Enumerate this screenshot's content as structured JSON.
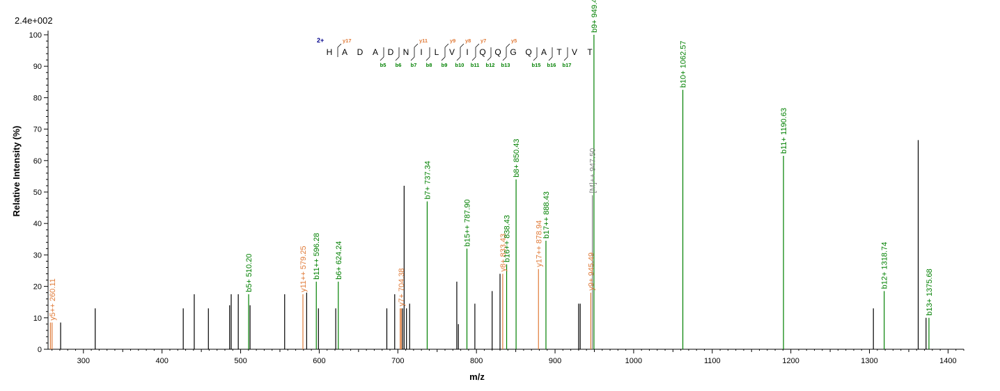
{
  "chart_data": {
    "type": "bar",
    "title": "",
    "max_intensity_label": "2.4e+002",
    "xlabel": "m/z",
    "ylabel": "Relative   Intensity (%)",
    "xlim": [
      255,
      1420
    ],
    "ylim": [
      0,
      100
    ],
    "x_ticks": [
      300,
      400,
      500,
      600,
      700,
      800,
      900,
      1000,
      1100,
      1200,
      1300,
      1400
    ],
    "y_ticks": [
      0,
      10,
      20,
      30,
      40,
      50,
      60,
      70,
      80,
      90,
      100
    ],
    "colors": {
      "b_ion": "#008000",
      "y_ion": "#e07b39",
      "unmatched": "#000000",
      "precursor": "#808080"
    },
    "peaks": [
      {
        "mz": 258.0,
        "i": 8.5,
        "type": "y"
      },
      {
        "mz": 260.11,
        "i": 8.5,
        "type": "y",
        "label": "y5++ 260.11"
      },
      {
        "mz": 271.0,
        "i": 8.5,
        "type": "u"
      },
      {
        "mz": 315.0,
        "i": 13.0,
        "type": "u"
      },
      {
        "mz": 427.0,
        "i": 13.0,
        "type": "u"
      },
      {
        "mz": 441.0,
        "i": 17.5,
        "type": "u"
      },
      {
        "mz": 459.0,
        "i": 13.0,
        "type": "u"
      },
      {
        "mz": 486.0,
        "i": 14.0,
        "type": "u"
      },
      {
        "mz": 488.0,
        "i": 17.5,
        "type": "u"
      },
      {
        "mz": 497.0,
        "i": 17.5,
        "type": "u"
      },
      {
        "mz": 510.2,
        "i": 17.5,
        "type": "b",
        "label": "b5+ 510.20"
      },
      {
        "mz": 512.0,
        "i": 14.0,
        "type": "u"
      },
      {
        "mz": 556.0,
        "i": 17.5,
        "type": "u"
      },
      {
        "mz": 579.25,
        "i": 17.5,
        "type": "y",
        "label": "y11++ 579.25"
      },
      {
        "mz": 584.0,
        "i": 18.0,
        "type": "u"
      },
      {
        "mz": 596.28,
        "i": 21.5,
        "type": "b",
        "label": "b11++ 596.28"
      },
      {
        "mz": 599.0,
        "i": 13.0,
        "type": "u"
      },
      {
        "mz": 621.0,
        "i": 13.0,
        "type": "u"
      },
      {
        "mz": 624.24,
        "i": 21.5,
        "type": "b",
        "label": "b6+ 624.24"
      },
      {
        "mz": 686.0,
        "i": 13.0,
        "type": "u"
      },
      {
        "mz": 696.0,
        "i": 17.5,
        "type": "u"
      },
      {
        "mz": 703.0,
        "i": 13.0,
        "type": "y"
      },
      {
        "mz": 704.38,
        "i": 13.0,
        "type": "y",
        "label": "y7+ 704.38"
      },
      {
        "mz": 706.0,
        "i": 13.0,
        "type": "u"
      },
      {
        "mz": 708.0,
        "i": 52.0,
        "type": "u"
      },
      {
        "mz": 711.0,
        "i": 13.0,
        "type": "u"
      },
      {
        "mz": 715.0,
        "i": 14.5,
        "type": "u"
      },
      {
        "mz": 737.34,
        "i": 47.0,
        "type": "b",
        "label": "b7+ 737.34"
      },
      {
        "mz": 775.0,
        "i": 21.5,
        "type": "u"
      },
      {
        "mz": 777.0,
        "i": 8.0,
        "type": "u"
      },
      {
        "mz": 787.9,
        "i": 32.0,
        "type": "b",
        "label": "b15++ 787.90"
      },
      {
        "mz": 798.0,
        "i": 14.5,
        "type": "u"
      },
      {
        "mz": 820.0,
        "i": 18.5,
        "type": "u"
      },
      {
        "mz": 830.0,
        "i": 24.0,
        "type": "u"
      },
      {
        "mz": 833.43,
        "i": 24.0,
        "type": "y",
        "label": "y8+ 833.43"
      },
      {
        "mz": 838.43,
        "i": 27.0,
        "type": "b",
        "label": "b16++ 838.43"
      },
      {
        "mz": 850.43,
        "i": 54.0,
        "type": "b",
        "label": "b8+ 850.43"
      },
      {
        "mz": 878.94,
        "i": 25.5,
        "type": "y",
        "label": "y17++ 878.94"
      },
      {
        "mz": 888.43,
        "i": 34.5,
        "type": "b",
        "label": "b17++ 888.43"
      },
      {
        "mz": 930.0,
        "i": 14.5,
        "type": "u"
      },
      {
        "mz": 932.0,
        "i": 14.5,
        "type": "u"
      },
      {
        "mz": 945.49,
        "i": 18.0,
        "type": "y",
        "label": "y9+ 945.49"
      },
      {
        "mz": 947.5,
        "i": 49.0,
        "type": "p",
        "label": "[M]++ 947.50"
      },
      {
        "mz": 949.49,
        "i": 100.0,
        "type": "b",
        "label": "b9+ 949.49"
      },
      {
        "mz": 1062.57,
        "i": 82.5,
        "type": "b",
        "label": "b10+ 1062.57"
      },
      {
        "mz": 1190.63,
        "i": 61.5,
        "type": "b",
        "label": "b11+ 1190.63"
      },
      {
        "mz": 1305.0,
        "i": 13.0,
        "type": "u"
      },
      {
        "mz": 1318.74,
        "i": 18.5,
        "type": "b",
        "label": "b12+ 1318.74"
      },
      {
        "mz": 1362.0,
        "i": 66.5,
        "type": "u"
      },
      {
        "mz": 1372.0,
        "i": 10.0,
        "type": "u"
      },
      {
        "mz": 1375.68,
        "i": 10.0,
        "type": "b",
        "label": "b13+ 1375.68"
      }
    ],
    "sequence": {
      "charge": "2+",
      "residues": [
        "H",
        "A",
        "D",
        "A",
        "D",
        "N",
        "I",
        "L",
        "V",
        "I",
        "Q",
        "Q",
        "G",
        "Q",
        "A",
        "T",
        "V",
        "T"
      ],
      "y_labels": [
        "",
        "y17",
        "",
        "",
        "",
        "",
        "y11",
        "",
        "y9",
        "y8",
        "y7",
        "",
        "y5",
        "",
        "",
        "",
        "",
        ""
      ],
      "b_labels": [
        "",
        "",
        "",
        "",
        "b5",
        "b6",
        "b7",
        "b8",
        "b9",
        "b10",
        "b11",
        "b12",
        "b13",
        "",
        "b15",
        "b16",
        "b17",
        ""
      ]
    }
  }
}
